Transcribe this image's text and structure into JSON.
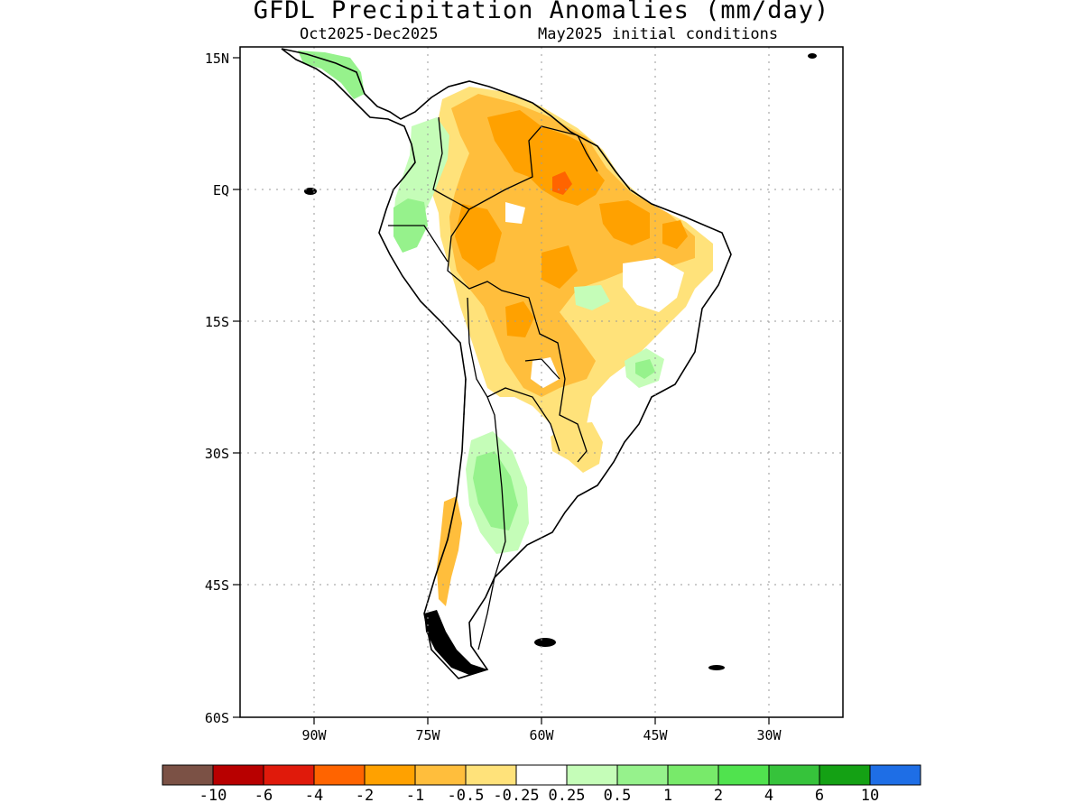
{
  "header": {
    "title": "GFDL Precipitation Anomalies (mm/day)",
    "period": "Oct2025-Dec2025",
    "init": "May2025 initial conditions"
  },
  "map": {
    "lat_labels": [
      "15N",
      "EQ",
      "15S",
      "30S",
      "45S",
      "60S"
    ],
    "lon_labels": [
      "90W",
      "75W",
      "60W",
      "45W",
      "30W"
    ],
    "grid": "dotted",
    "region": "South America"
  },
  "colorbar": {
    "colors": [
      "#7b5145",
      "#b80000",
      "#e01a0b",
      "#ff6400",
      "#ffa100",
      "#ffbe3c",
      "#ffe27a",
      "#ffffff",
      "#c5fdb8",
      "#96f28c",
      "#78ea6a",
      "#50e34e",
      "#36c33b",
      "#14a114",
      "#1e6ee6"
    ],
    "labels": [
      "-10",
      "-6",
      "-4",
      "-2",
      "-1",
      "-0.5",
      "-0.25",
      "0.25",
      "0.5",
      "1",
      "2",
      "4",
      "6",
      "10"
    ]
  }
}
